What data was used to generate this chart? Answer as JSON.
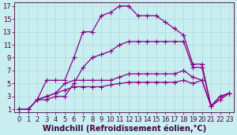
{
  "xlabel": "Windchill (Refroidissement éolien,°C)",
  "background_color": "#c8eef0",
  "grid_color": "#b0d8dc",
  "line_color": "#880088",
  "xlim": [
    -0.5,
    23.5
  ],
  "ylim": [
    0.5,
    17.5
  ],
  "xticks": [
    0,
    1,
    2,
    3,
    4,
    5,
    6,
    7,
    8,
    9,
    10,
    11,
    12,
    13,
    14,
    15,
    16,
    17,
    18,
    19,
    20,
    21,
    22,
    23
  ],
  "yticks": [
    1,
    3,
    5,
    7,
    9,
    11,
    13,
    15,
    17
  ],
  "series": [
    [
      1.0,
      1.0,
      2.5,
      5.5,
      5.5,
      5.5,
      9.0,
      13.0,
      13.0,
      15.5,
      16.0,
      17.0,
      17.0,
      15.5,
      15.5,
      15.5,
      14.5,
      13.5,
      12.5,
      8.0,
      8.0,
      1.5,
      3.0,
      3.5
    ],
    [
      1.0,
      1.0,
      2.5,
      2.5,
      3.0,
      3.0,
      5.0,
      7.5,
      9.0,
      9.5,
      10.0,
      11.0,
      11.5,
      11.5,
      11.5,
      11.5,
      11.5,
      11.5,
      11.5,
      7.5,
      7.5,
      1.5,
      3.0,
      3.5
    ],
    [
      1.0,
      1.0,
      2.5,
      3.0,
      3.5,
      5.0,
      5.5,
      5.5,
      5.5,
      5.5,
      5.5,
      6.0,
      6.5,
      6.5,
      6.5,
      6.5,
      6.5,
      6.5,
      7.0,
      6.0,
      5.5,
      1.5,
      2.5,
      3.5
    ],
    [
      1.0,
      1.0,
      2.5,
      3.0,
      3.5,
      4.0,
      4.5,
      4.5,
      4.5,
      4.5,
      4.8,
      5.0,
      5.2,
      5.2,
      5.2,
      5.2,
      5.2,
      5.2,
      5.5,
      5.0,
      5.5,
      1.5,
      3.0,
      3.5
    ]
  ],
  "marker": "+",
  "markersize": 4,
  "linewidth": 0.9,
  "font_size": 7,
  "tick_fontsize": 6
}
